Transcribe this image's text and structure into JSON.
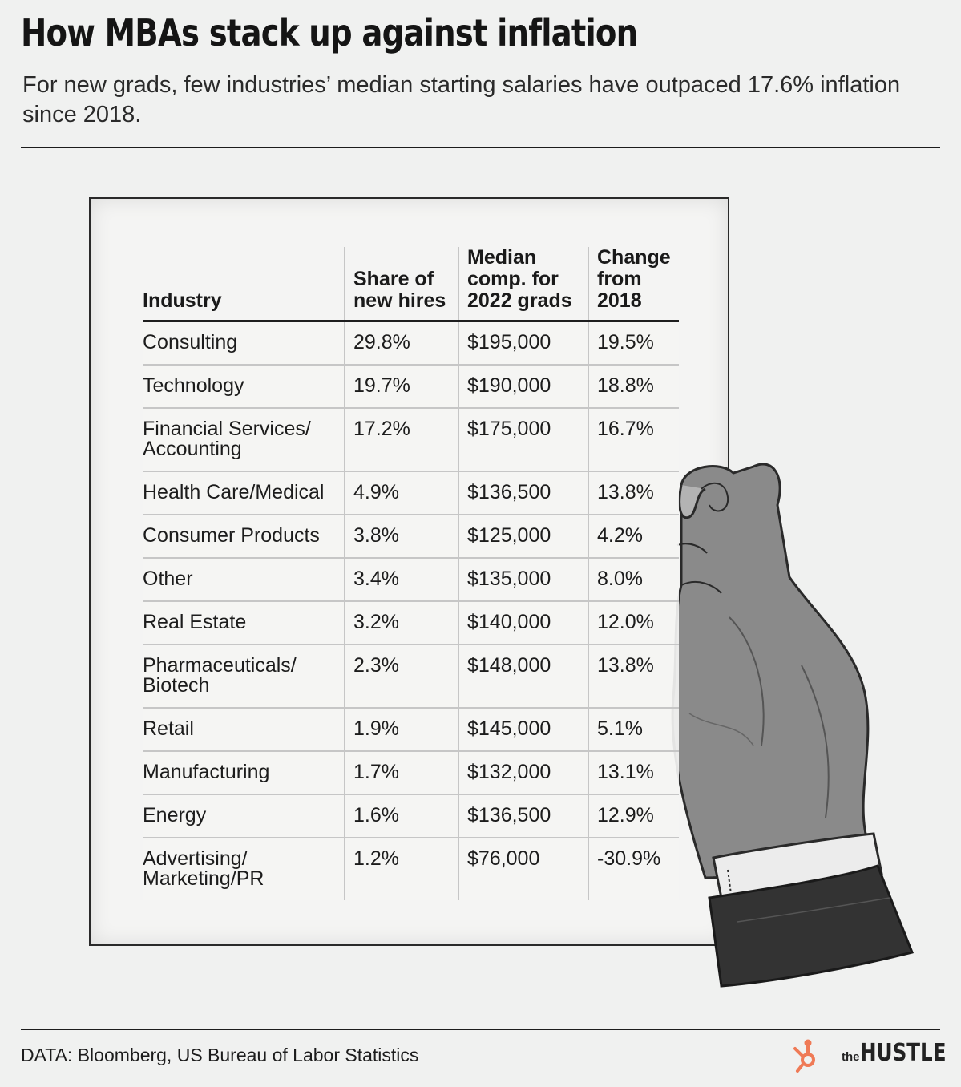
{
  "header": {
    "title": "How MBAs stack up against inflation",
    "subtitle": "For new grads, few industries’ median starting salaries have outpaced 17.6% inflation since 2018."
  },
  "chart_data": {
    "type": "table",
    "title": "How MBAs stack up against inflation",
    "subtitle": "For new grads, few industries’ median starting salaries have outpaced 17.6% inflation since 2018.",
    "columns": [
      "Industry",
      "Share of new hires",
      "Median comp. for 2022 grads",
      "Change from 2018"
    ],
    "rows": [
      [
        "Consulting",
        "29.8%",
        "$195,000",
        "19.5%"
      ],
      [
        "Technology",
        "19.7%",
        "$190,000",
        "18.8%"
      ],
      [
        "Financial Services/ Accounting",
        "17.2%",
        "$175,000",
        "16.7%"
      ],
      [
        "Health Care/Medical",
        "4.9%",
        "$136,500",
        "13.8%"
      ],
      [
        "Consumer Products",
        "3.8%",
        "$125,000",
        "4.2%"
      ],
      [
        "Other",
        "3.4%",
        "$135,000",
        "8.0%"
      ],
      [
        "Real Estate",
        "3.2%",
        "$140,000",
        "12.0%"
      ],
      [
        "Pharmaceuticals/ Biotech",
        "2.3%",
        "$148,000",
        "13.8%"
      ],
      [
        "Retail",
        "1.9%",
        "$145,000",
        "5.1%"
      ],
      [
        "Manufacturing",
        "1.7%",
        "$132,000",
        "13.1%"
      ],
      [
        "Energy",
        "1.6%",
        "$136,500",
        "12.9%"
      ],
      [
        "Advertising/ Marketing/PR",
        "1.2%",
        "$76,000",
        "-30.9%"
      ]
    ]
  },
  "footer": {
    "source": "DATA: Bloomberg, US Bureau of Labor Statistics",
    "brand_prefix": "the",
    "brand_name": "HUSTLE"
  },
  "colors": {
    "background": "#f0f1f0",
    "text": "#1c1c1c",
    "logo_accent": "#ef7a56"
  },
  "icons": {
    "illustration": "hand-holding-paper-icon",
    "logo": "hubspot-sprocket-icon"
  }
}
